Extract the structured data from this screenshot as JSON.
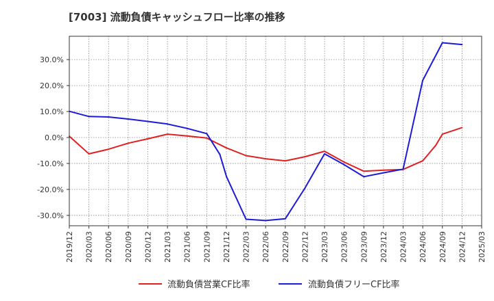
{
  "chart_data": {
    "type": "line",
    "title": "[7003]  流動負債キャッシュフロー比率の推移",
    "xlabel": "",
    "ylabel": "",
    "x_ticks": [
      "2019/12",
      "2020/03",
      "2020/06",
      "2020/09",
      "2020/12",
      "2021/03",
      "2021/06",
      "2021/09",
      "2021/12",
      "2022/03",
      "2022/06",
      "2022/09",
      "2022/12",
      "2023/03",
      "2023/06",
      "2023/09",
      "2023/12",
      "2024/03",
      "2024/06",
      "2024/09",
      "2024/12",
      "2025/03"
    ],
    "y_ticks": [
      "-30.0%",
      "-20.0%",
      "-10.0%",
      "0.0%",
      "10.0%",
      "20.0%",
      "30.0%"
    ],
    "ylim": [
      -34,
      39
    ],
    "grid": true,
    "legend_position": "bottom",
    "series": [
      {
        "name": "流動負債営業CF比率",
        "color": "#e0201e",
        "points": [
          [
            "2019/12",
            0.5
          ],
          [
            "2020/03",
            -6.3
          ],
          [
            "2020/06",
            -4.5
          ],
          [
            "2020/09",
            -2.2
          ],
          [
            "2020/12",
            -0.5
          ],
          [
            "2021/03",
            1.3
          ],
          [
            "2021/06",
            0.6
          ],
          [
            "2021/09",
            -0.2
          ],
          [
            "2021/10",
            -1.5
          ],
          [
            "2021/12",
            -4.0
          ],
          [
            "2022/03",
            -7.0
          ],
          [
            "2022/06",
            -8.2
          ],
          [
            "2022/09",
            -9.0
          ],
          [
            "2022/12",
            -7.4
          ],
          [
            "2023/03",
            -5.3
          ],
          [
            "2023/06",
            -9.5
          ],
          [
            "2023/09",
            -13.0
          ],
          [
            "2023/12",
            -12.6
          ],
          [
            "2024/03",
            -12.3
          ],
          [
            "2024/06",
            -9.0
          ],
          [
            "2024/08",
            -3.0
          ],
          [
            "2024/09",
            1.3
          ],
          [
            "2024/12",
            3.8
          ]
        ]
      },
      {
        "name": "流動負債フリーCF比率",
        "color": "#1a1ad8",
        "points": [
          [
            "2019/12",
            10.1
          ],
          [
            "2020/03",
            8.1
          ],
          [
            "2020/06",
            7.9
          ],
          [
            "2020/09",
            7.1
          ],
          [
            "2020/12",
            6.2
          ],
          [
            "2021/03",
            5.2
          ],
          [
            "2021/06",
            3.5
          ],
          [
            "2021/09",
            1.5
          ],
          [
            "2021/11",
            -6.5
          ],
          [
            "2021/12",
            -15.0
          ],
          [
            "2022/03",
            -31.5
          ],
          [
            "2022/06",
            -32.0
          ],
          [
            "2022/09",
            -31.3
          ],
          [
            "2022/12",
            -19.5
          ],
          [
            "2023/03",
            -6.3
          ],
          [
            "2023/06",
            -10.5
          ],
          [
            "2023/09",
            -15.1
          ],
          [
            "2023/12",
            -13.6
          ],
          [
            "2024/03",
            -12.2
          ],
          [
            "2024/06",
            22.0
          ],
          [
            "2024/09",
            36.5
          ],
          [
            "2024/12",
            35.8
          ]
        ]
      }
    ]
  }
}
